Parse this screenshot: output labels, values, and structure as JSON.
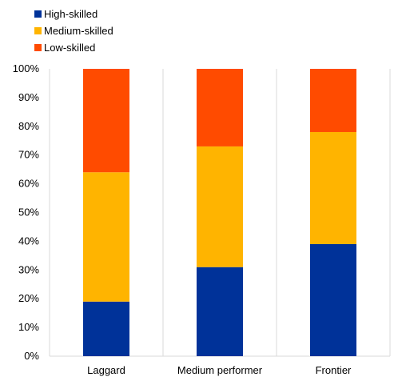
{
  "chart_data": {
    "type": "bar",
    "stacked": true,
    "categories": [
      "Laggard",
      "Medium performer",
      "Frontier"
    ],
    "series": [
      {
        "name": "High-skilled",
        "color": "#003299",
        "values": [
          19,
          31,
          39
        ]
      },
      {
        "name": "Medium-skilled",
        "color": "#FFB400",
        "values": [
          45,
          42,
          39
        ]
      },
      {
        "name": "Low-skilled",
        "color": "#FF4B00",
        "values": [
          36,
          27,
          22
        ]
      }
    ],
    "y_ticks": [
      "0%",
      "10%",
      "20%",
      "30%",
      "40%",
      "50%",
      "60%",
      "70%",
      "80%",
      "90%",
      "100%"
    ],
    "ylim": [
      0,
      100
    ],
    "grid": "vertical separators",
    "legend_position": "top-left"
  }
}
